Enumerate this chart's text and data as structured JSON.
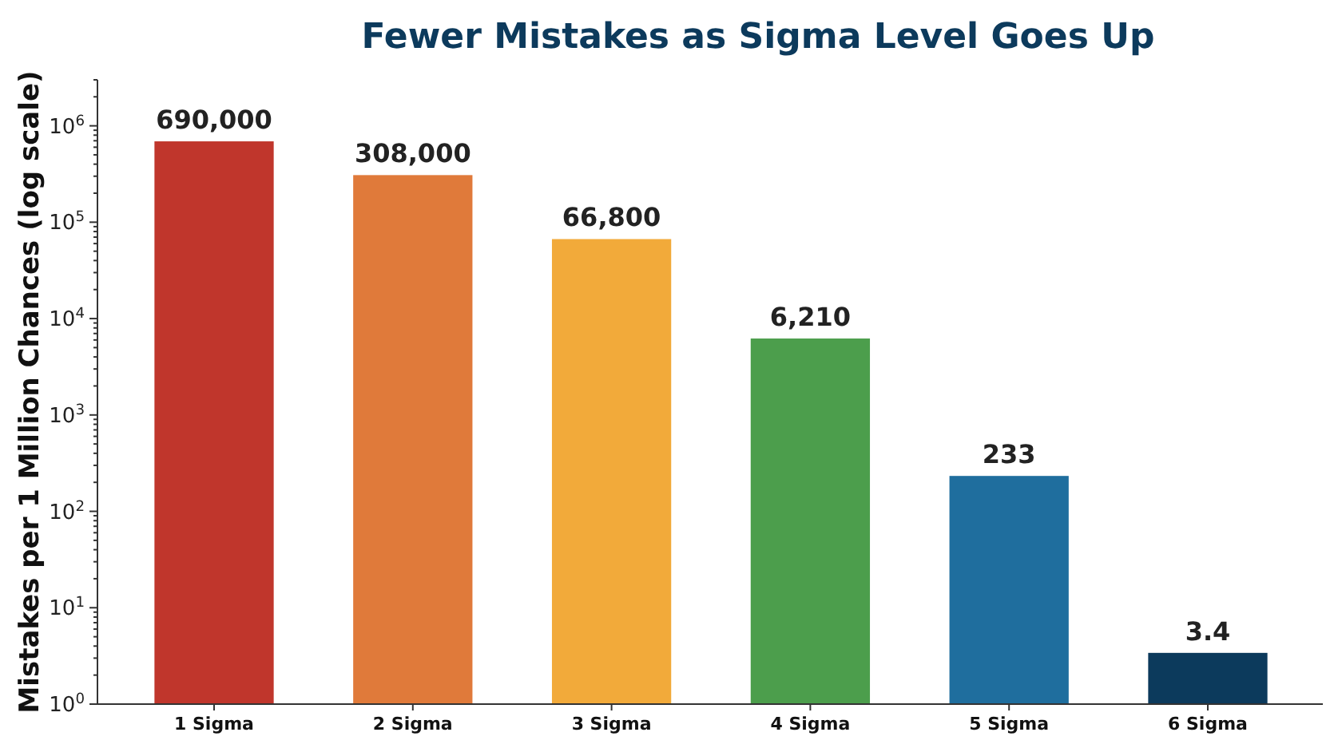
{
  "chart_data": {
    "type": "bar",
    "title": "Fewer Mistakes as Sigma Level Goes Up",
    "ylabel": "Mistakes per 1 Million Chances (log scale)",
    "categories": [
      "1 Sigma",
      "2 Sigma",
      "3 Sigma",
      "4 Sigma",
      "5 Sigma",
      "6 Sigma"
    ],
    "values": [
      690000,
      308000,
      66800,
      6210,
      233,
      3.4
    ],
    "colors": [
      "#c0362c",
      "#e07a3a",
      "#f2aa3a",
      "#4c9e4c",
      "#1f6e9e",
      "#0c3a5c"
    ],
    "value_labels": [
      "690,000",
      "308,000",
      "66,800",
      "6,210",
      "233",
      "3.4"
    ],
    "log": true,
    "ylim": [
      1,
      3000000
    ],
    "yticks": [
      {
        "value": 1,
        "label": "10$^{0}$"
      },
      {
        "value": 10,
        "label": "10$^{1}$"
      },
      {
        "value": 100,
        "label": "10$^{2}$"
      },
      {
        "value": 1000,
        "label": "10$^{3}$"
      },
      {
        "value": 10000,
        "label": "10$^{4}$"
      },
      {
        "value": 100000,
        "label": "10$^{5}$"
      },
      {
        "value": 1000000,
        "label": "10$^{6}$"
      }
    ]
  }
}
